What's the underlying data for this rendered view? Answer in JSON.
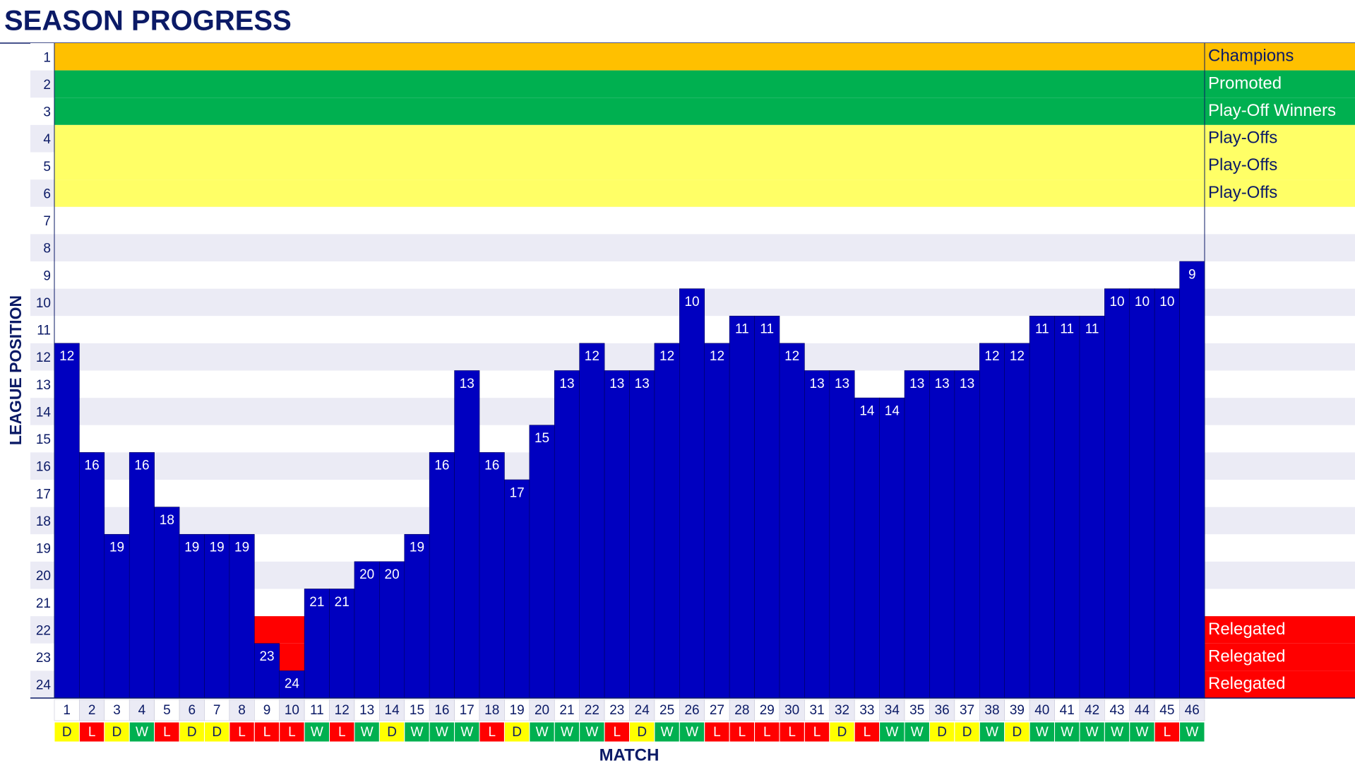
{
  "chart_data": {
    "type": "bar",
    "title": "SEASON PROGRESS",
    "y_label": "LEAGUE POSITION",
    "x_label": "MATCH",
    "categories": [
      1,
      2,
      3,
      4,
      5,
      6,
      7,
      8,
      9,
      10,
      11,
      12,
      13,
      14,
      15,
      16,
      17,
      18,
      19,
      20,
      21,
      22,
      23,
      24,
      25,
      26,
      27,
      28,
      29,
      30,
      31,
      32,
      33,
      34,
      35,
      36,
      37,
      38,
      39,
      40,
      41,
      42,
      43,
      44,
      45,
      46
    ],
    "values": [
      12,
      16,
      19,
      16,
      18,
      19,
      19,
      19,
      23,
      24,
      21,
      21,
      20,
      20,
      19,
      16,
      13,
      16,
      17,
      15,
      13,
      12,
      13,
      13,
      12,
      10,
      12,
      11,
      11,
      12,
      13,
      13,
      14,
      14,
      13,
      13,
      13,
      12,
      12,
      11,
      11,
      11,
      10,
      10,
      10,
      9
    ],
    "results": [
      "D",
      "L",
      "D",
      "W",
      "L",
      "D",
      "D",
      "L",
      "L",
      "L",
      "W",
      "L",
      "W",
      "D",
      "W",
      "W",
      "W",
      "L",
      "D",
      "W",
      "W",
      "W",
      "L",
      "D",
      "W",
      "W",
      "L",
      "L",
      "L",
      "L",
      "L",
      "D",
      "L",
      "W",
      "W",
      "D",
      "D",
      "W",
      "D",
      "W",
      "W",
      "W",
      "W",
      "W",
      "L",
      "W"
    ],
    "result_colors": {
      "W": "#00b050",
      "D": "#ffff00",
      "L": "#ff0000"
    },
    "color": "#0000c0",
    "ylim": [
      24.5,
      0.5
    ],
    "inverted": true,
    "yticks": [
      1,
      2,
      3,
      4,
      5,
      6,
      7,
      8,
      9,
      10,
      11,
      12,
      13,
      14,
      15,
      16,
      17,
      18,
      19,
      20,
      21,
      22,
      23,
      24
    ],
    "zones": [
      {
        "label": "Champions",
        "color": "#ffc000",
        "text_color": "#0b1a66",
        "positions": [
          1
        ]
      },
      {
        "label": "Promoted",
        "color": "#00b050",
        "text_color": "#ffffff",
        "positions": [
          2
        ]
      },
      {
        "label": "Play-Off Winners",
        "color": "#00b050",
        "text_color": "#ffffff",
        "positions": [
          3
        ]
      },
      {
        "label": "Play-Offs",
        "color": "#ffff66",
        "text_color": "#0b1a66",
        "positions": [
          4,
          5,
          6
        ]
      },
      {
        "label": "Relegated",
        "color": "#ff0000",
        "text_color": "#ffffff",
        "positions": [
          22,
          23,
          24
        ]
      }
    ]
  }
}
